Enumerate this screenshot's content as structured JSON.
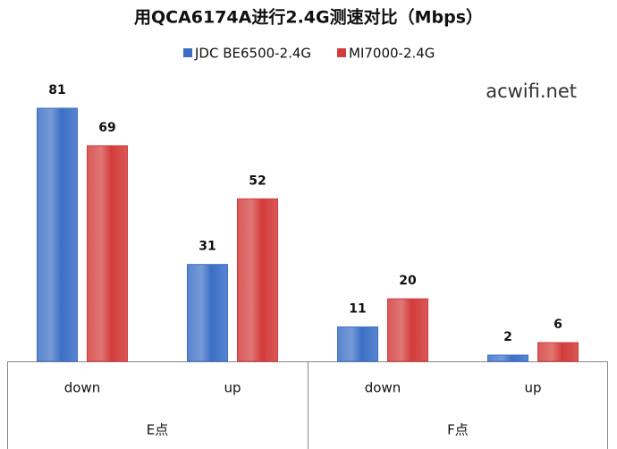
{
  "chart_data": {
    "type": "bar",
    "title": "用QCA6174A进行2.4G测速对比（Mbps）",
    "annotation": "acwifi.net",
    "categories": [
      "down",
      "up",
      "down",
      "up"
    ],
    "groups": [
      "E点",
      "F点"
    ],
    "series": [
      {
        "name": "JDC BE6500-2.4G",
        "color": "#3b6fc6",
        "values": [
          81,
          31,
          11,
          2
        ]
      },
      {
        "name": "MI7000-2.4G",
        "color": "#d23c3a",
        "values": [
          69,
          52,
          20,
          6
        ]
      }
    ],
    "legend": "top"
  }
}
